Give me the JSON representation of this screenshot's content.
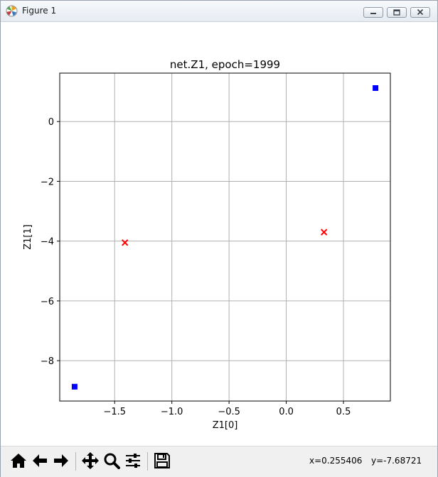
{
  "window": {
    "title": "Figure 1"
  },
  "chart_data": {
    "type": "scatter",
    "title": "net.Z1, epoch=1999",
    "xlabel": "Z1[0]",
    "ylabel": "Z1[1]",
    "xlim": [
      -1.98,
      0.91
    ],
    "ylim": [
      -9.35,
      1.62
    ],
    "xticks": [
      -1.5,
      -1.0,
      -0.5,
      0.0,
      0.5
    ],
    "xtick_labels": [
      "−1.5",
      "−1.0",
      "−0.5",
      "0.0",
      "0.5"
    ],
    "yticks": [
      0,
      -2,
      -4,
      -6,
      -8
    ],
    "ytick_labels": [
      "0",
      "−2",
      "−4",
      "−6",
      "−8"
    ],
    "grid": true,
    "series": [
      {
        "marker": "square",
        "color": "#0000ff",
        "points": [
          [
            -1.85,
            -8.87
          ],
          [
            0.78,
            1.12
          ]
        ]
      },
      {
        "marker": "x",
        "color": "#ff0000",
        "points": [
          [
            -1.41,
            -4.05
          ],
          [
            0.33,
            -3.7
          ]
        ]
      }
    ]
  },
  "toolbar": {
    "buttons": [
      {
        "name": "home-button",
        "icon": "home-icon"
      },
      {
        "name": "back-button",
        "icon": "arrow-left-icon"
      },
      {
        "name": "forward-button",
        "icon": "arrow-right-icon"
      },
      {
        "name": "pan-button",
        "icon": "move-icon"
      },
      {
        "name": "zoom-button",
        "icon": "magnifier-icon"
      },
      {
        "name": "configure-subplots-button",
        "icon": "sliders-icon"
      },
      {
        "name": "save-button",
        "icon": "floppy-disk-icon"
      }
    ],
    "x_readout": "x=0.255406",
    "y_readout": "y=-7.68721"
  }
}
